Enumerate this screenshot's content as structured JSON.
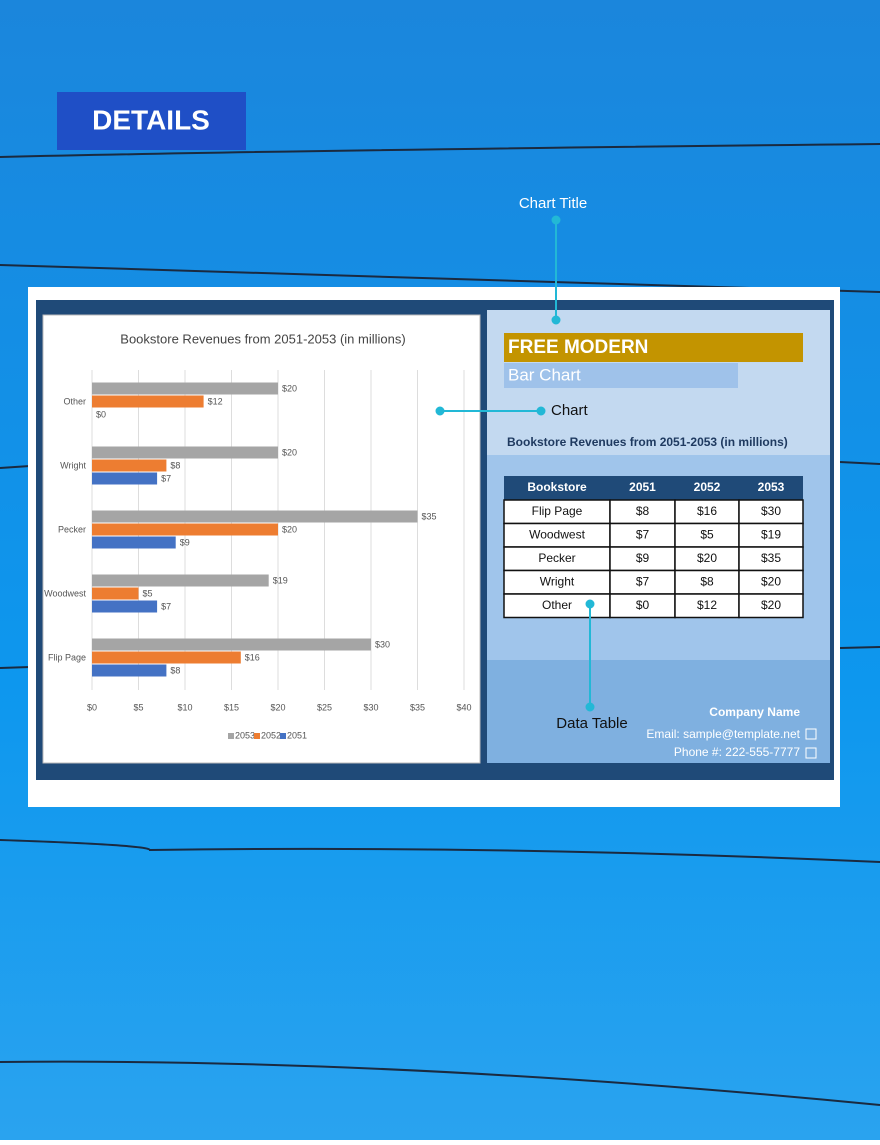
{
  "header": {
    "title": "DETAILS"
  },
  "callouts": {
    "chart_title": "Chart Title",
    "chart": "Chart",
    "data_table": "Data Table"
  },
  "chart_data": {
    "type": "bar",
    "orientation": "horizontal",
    "title": "Bookstore Revenues from 2051-2053 (in millions)",
    "categories": [
      "Other",
      "Wright",
      "Pecker",
      "Woodwest",
      "Flip Page"
    ],
    "series": [
      {
        "name": "2053",
        "color": "#a5a5a5",
        "values": [
          20,
          20,
          35,
          19,
          30
        ],
        "value_labels": [
          "$20",
          "$20",
          "$35",
          "$19",
          "$30"
        ]
      },
      {
        "name": "2052",
        "color": "#ed7d31",
        "values": [
          12,
          8,
          20,
          5,
          16
        ],
        "value_labels": [
          "$12",
          "$8",
          "$20",
          "$5",
          "$16"
        ]
      },
      {
        "name": "2051",
        "color": "#4472c4",
        "values": [
          0,
          7,
          9,
          7,
          8
        ],
        "value_labels": [
          "$0",
          "$7",
          "$9",
          "$7",
          "$8"
        ]
      }
    ],
    "xlim": [
      0,
      40
    ],
    "xticks": [
      {
        "value": 0,
        "label": "$0"
      },
      {
        "value": 5,
        "label": "$5"
      },
      {
        "value": 10,
        "label": "$10"
      },
      {
        "value": 15,
        "label": "$15"
      },
      {
        "value": 20,
        "label": "$20"
      },
      {
        "value": 25,
        "label": "$25"
      },
      {
        "value": 30,
        "label": "$30"
      },
      {
        "value": 35,
        "label": "$35"
      },
      {
        "value": 40,
        "label": "$40"
      }
    ],
    "grid": true,
    "legend": "bottom"
  },
  "template": {
    "title": "FREE MODERN",
    "subtitle": "Bar Chart",
    "table_title": "Bookstore Revenues from 2051-2053 (in millions)",
    "table": {
      "header": [
        "Bookstore",
        "2051",
        "2052",
        "2053"
      ],
      "rows": [
        [
          "Flip Page",
          "$8",
          "$16",
          "$30"
        ],
        [
          "Woodwest",
          "$7",
          "$5",
          "$19"
        ],
        [
          "Pecker",
          "$9",
          "$20",
          "$35"
        ],
        [
          "Wright",
          "$7",
          "$8",
          "$20"
        ],
        [
          "Other",
          "$0",
          "$12",
          "$20"
        ]
      ]
    },
    "footer": {
      "company": "Company Name",
      "email": "Email: sample@template.net",
      "phone": "Phone #: 222-555-7777"
    }
  }
}
